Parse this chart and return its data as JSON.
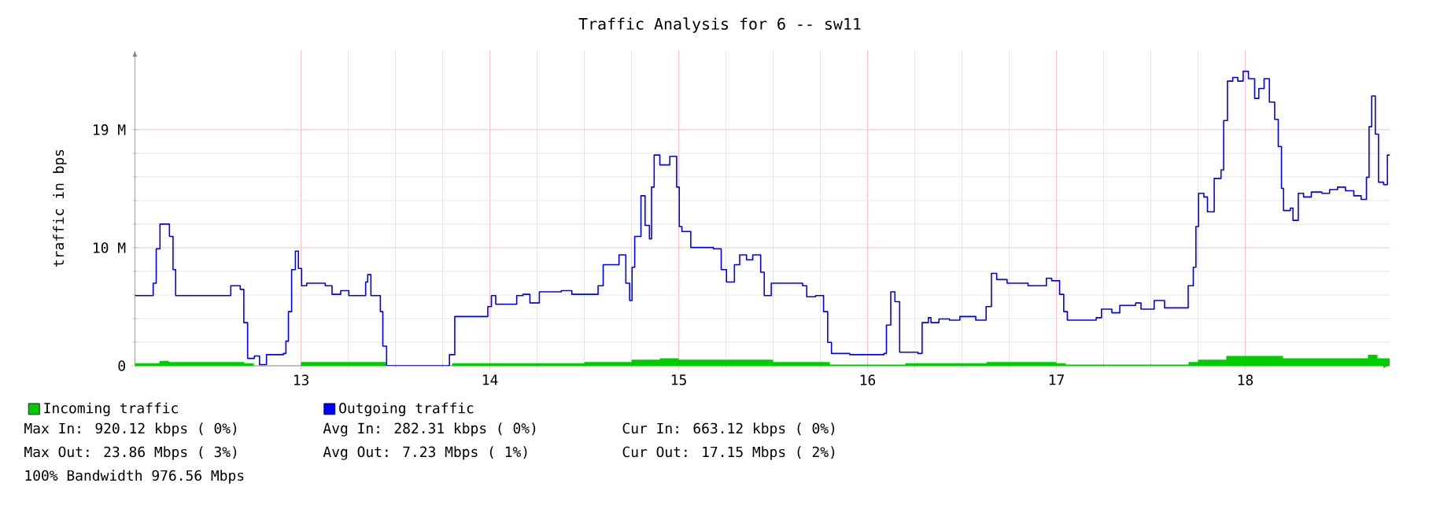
{
  "chart_data": {
    "type": "step",
    "title": "Traffic Analysis for 6 -- sw11",
    "ylabel": "traffic in bps",
    "xlim": [
      12.12,
      18.765
    ],
    "xticks": [
      13,
      14,
      15,
      16,
      17,
      18
    ],
    "ylim": [
      0,
      25.6
    ],
    "yticks": [
      0,
      {
        "value": 9.58,
        "label": "10 M"
      },
      {
        "value": 19.16,
        "label": "19 M"
      }
    ],
    "grid": true,
    "legend": "bottom left",
    "series": [
      {
        "name": "Incoming traffic",
        "type": "area",
        "color": "#00cc00",
        "x": [
          12.12,
          12.25,
          12.3,
          12.7,
          12.75,
          13.0,
          13.4,
          13.45,
          13.78,
          13.8,
          14.5,
          14.75,
          14.9,
          15.0,
          15.5,
          15.8,
          16.1,
          16.2,
          16.5,
          16.63,
          17.0,
          17.05,
          17.7,
          17.75,
          17.9,
          18.0,
          18.1,
          18.2,
          18.6,
          18.65,
          18.7,
          18.765
        ],
        "values": [
          0.2,
          0.4,
          0.3,
          0.2,
          0,
          0.3,
          0.3,
          0,
          0,
          0.2,
          0.3,
          0.5,
          0.6,
          0.5,
          0.3,
          0.1,
          0.1,
          0.2,
          0.2,
          0.3,
          0.2,
          0.1,
          0.3,
          0.5,
          0.8,
          0.8,
          0.8,
          0.6,
          0.6,
          0.9,
          0.6,
          0.7
        ]
      },
      {
        "name": "Outgoing traffic",
        "color": "#0000ff",
        "x": [
          12.12,
          12.217,
          12.233,
          12.253,
          12.303,
          12.322,
          12.336,
          12.628,
          12.678,
          12.697,
          12.717,
          12.753,
          12.78,
          12.817,
          12.906,
          12.92,
          12.933,
          12.95,
          12.97,
          12.986,
          13.003,
          13.03,
          13.128,
          13.164,
          13.21,
          13.253,
          13.342,
          13.353,
          13.37,
          13.42,
          13.433,
          13.453,
          13.711,
          13.786,
          13.814,
          13.878,
          13.989,
          14.008,
          14.031,
          14.142,
          14.175,
          14.212,
          14.262,
          14.378,
          14.434,
          14.573,
          14.6,
          14.684,
          14.72,
          14.74,
          14.753,
          14.767,
          14.8,
          14.822,
          14.845,
          14.856,
          14.87,
          14.9,
          14.953,
          14.989,
          15.003,
          15.017,
          15.064,
          15.184,
          15.225,
          15.253,
          15.295,
          15.323,
          15.359,
          15.392,
          15.434,
          15.453,
          15.49,
          15.656,
          15.678,
          15.725,
          15.767,
          15.789,
          15.809,
          15.906,
          16.087,
          16.1,
          16.123,
          16.145,
          16.17,
          16.267,
          16.289,
          16.322,
          16.336,
          16.378,
          16.434,
          16.489,
          16.573,
          16.628,
          16.656,
          16.684,
          16.739,
          16.85,
          16.947,
          16.975,
          17.017,
          17.039,
          17.058,
          17.211,
          17.239,
          17.294,
          17.336,
          17.42,
          17.448,
          17.518,
          17.573,
          17.698,
          17.725,
          17.739,
          17.753,
          17.781,
          17.8,
          17.836,
          17.872,
          17.886,
          17.906,
          17.934,
          17.961,
          17.989,
          18.017,
          18.05,
          18.072,
          18.1,
          18.128,
          18.156,
          18.175,
          18.192,
          18.203,
          18.239,
          18.253,
          18.281,
          18.309,
          18.35,
          18.406,
          18.447,
          18.489,
          18.531,
          18.575,
          18.614,
          18.642,
          18.656,
          18.67,
          18.689,
          18.706,
          18.733,
          18.753,
          18.765
        ],
        "values": [
          5.7,
          6.7,
          9.5,
          11.5,
          10.5,
          7.8,
          5.7,
          6.5,
          6.2,
          3.5,
          0.6,
          0.8,
          0.1,
          0.9,
          1.0,
          2.0,
          4.4,
          7.8,
          9.3,
          7.9,
          6.5,
          6.7,
          6.5,
          5.8,
          6.1,
          5.7,
          6.8,
          7.4,
          5.7,
          4.4,
          1.6,
          0,
          0,
          0.9,
          4.0,
          4.0,
          4.8,
          5.7,
          5.0,
          5.7,
          5.8,
          5.1,
          6.0,
          6.1,
          5.8,
          6.5,
          8.2,
          9.0,
          6.7,
          5.3,
          8.0,
          10.5,
          13.8,
          11.4,
          10.3,
          14.5,
          17.1,
          16.3,
          17.0,
          14.5,
          11.3,
          10.9,
          9.6,
          9.5,
          7.8,
          6.8,
          8.2,
          9.0,
          8.6,
          9.0,
          7.6,
          5.7,
          6.7,
          6.5,
          5.6,
          5.7,
          4.4,
          1.9,
          1.0,
          0.9,
          1.0,
          3.3,
          6.0,
          5.2,
          1.1,
          1.0,
          3.5,
          3.9,
          3.5,
          3.8,
          3.7,
          4.0,
          3.7,
          4.8,
          7.5,
          7.0,
          6.7,
          6.5,
          7.1,
          6.9,
          5.8,
          4.4,
          3.7,
          3.9,
          4.6,
          4.3,
          4.9,
          5.1,
          4.6,
          5.3,
          4.7,
          6.5,
          8.0,
          11.3,
          14.0,
          13.7,
          12.5,
          15.2,
          15.9,
          19.9,
          23.1,
          23.4,
          23.1,
          23.9,
          23.3,
          21.7,
          22.5,
          23.3,
          21.4,
          20.0,
          17.8,
          14.4,
          12.6,
          12.8,
          11.8,
          14.0,
          13.7,
          14.1,
          14.0,
          14.3,
          14.5,
          14.2,
          13.8,
          13.5,
          15.3,
          19.4,
          21.9,
          18.8,
          14.9,
          14.7,
          17.1,
          17.1
        ]
      }
    ],
    "annotations": [
      "Max In: 920.12 kbps ( 0%)",
      "Avg In: 282.31 kbps ( 0%)",
      "Cur In: 663.12 kbps ( 0%)",
      "Max Out: 23.86 Mbps ( 3%)",
      "Avg Out: 7.23 Mbps ( 1%)",
      "Cur Out: 17.15 Mbps ( 2%)",
      "100% Bandwidth 976.56 Mbps"
    ]
  }
}
